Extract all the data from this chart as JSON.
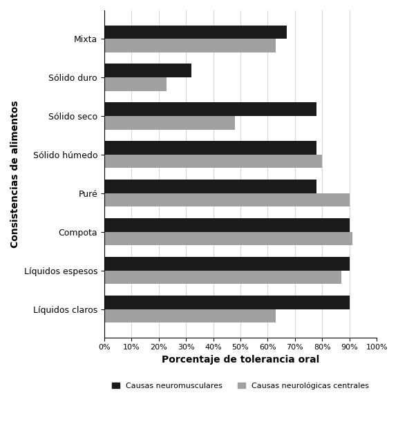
{
  "categories": [
    "Líquidos claros",
    "Líquidos espesos",
    "Compota",
    "Puré",
    "Sólido húmedo",
    "Sólido seco",
    "Sólido duro",
    "Mixta"
  ],
  "neuromusculares": [
    90,
    90,
    90,
    78,
    78,
    78,
    32,
    67
  ],
  "neurologicas": [
    63,
    87,
    91,
    90,
    80,
    48,
    23,
    63
  ],
  "color_neuromusculares": "#1a1a1a",
  "color_neurologicas": "#a0a0a0",
  "xlabel": "Porcentaje de tolerancia oral",
  "ylabel": "Consistencias de alimentos",
  "xtick_labels": [
    "0%",
    "10%",
    "20%",
    "30%",
    "40%",
    "50%",
    "60%",
    "70%",
    "80%",
    "90%",
    "100%"
  ],
  "xtick_values": [
    0,
    10,
    20,
    30,
    40,
    50,
    60,
    70,
    80,
    90,
    100
  ],
  "legend_neuromusculares": "Causas neuromusculares",
  "legend_neurologicas": "Causas neurológicas centrales",
  "bar_height": 0.35,
  "figsize": [
    5.76,
    6.14
  ],
  "dpi": 100
}
